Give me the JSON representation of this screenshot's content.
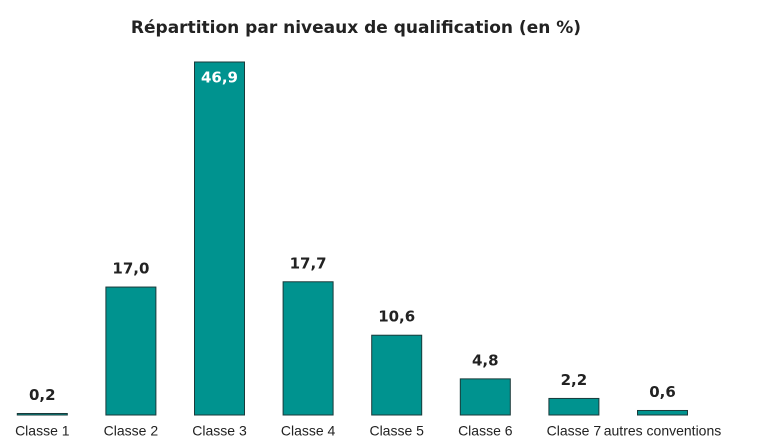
{
  "chart_data": {
    "type": "bar",
    "title": "Répartition par niveaux de qualification (en %)",
    "categories": [
      "Classe 1",
      "Classe 2",
      "Classe 3",
      "Classe 4",
      "Classe 5",
      "Classe 6",
      "Classe 7",
      "autres conventions"
    ],
    "values": [
      0.2,
      17.0,
      46.9,
      17.7,
      10.6,
      4.8,
      2.2,
      0.6
    ],
    "value_labels": [
      "0,2",
      "17,0",
      "46,9",
      "17,7",
      "10,6",
      "4,8",
      "2,2",
      "0,6"
    ],
    "color": "#00938f"
  }
}
